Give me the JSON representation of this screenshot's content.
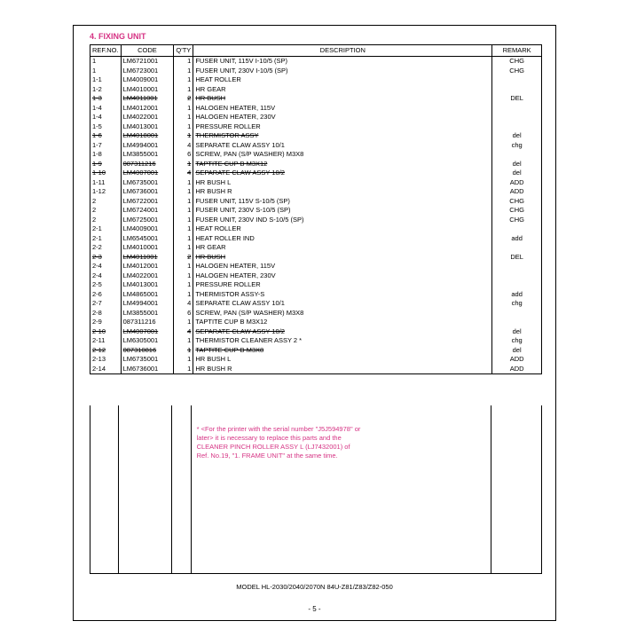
{
  "section_title": "4. FIXING UNIT",
  "headers": {
    "ref": "REF.NO.",
    "code": "CODE",
    "qty": "Q'TY",
    "desc": "DESCRIPTION",
    "remark": "REMARK"
  },
  "rows": [
    {
      "ref": "1",
      "code": "LM6721001",
      "qty": "1",
      "desc": "FUSER UNIT, 115V I-10/5 (SP)",
      "remark": "CHG",
      "s": false
    },
    {
      "ref": "1",
      "code": "LM6723001",
      "qty": "1",
      "desc": "FUSER UNIT, 230V I-10/5 (SP)",
      "remark": "CHG",
      "s": false
    },
    {
      "ref": "1-1",
      "code": "LM4009001",
      "qty": "1",
      "desc": "HEAT ROLLER",
      "remark": "",
      "s": false
    },
    {
      "ref": "1-2",
      "code": "LM4010001",
      "qty": "1",
      "desc": "HR GEAR",
      "remark": "",
      "s": false
    },
    {
      "ref": "1-3",
      "code": "LM4011001",
      "qty": "2",
      "desc": "HR BUSH",
      "remark": "DEL",
      "s": true
    },
    {
      "ref": "1-4",
      "code": "LM4012001",
      "qty": "1",
      "desc": "HALOGEN HEATER, 115V",
      "remark": "",
      "s": false
    },
    {
      "ref": "1-4",
      "code": "LM4022001",
      "qty": "1",
      "desc": "HALOGEN HEATER, 230V",
      "remark": "",
      "s": false
    },
    {
      "ref": "1-5",
      "code": "LM4013001",
      "qty": "1",
      "desc": "PRESSURE ROLLER",
      "remark": "",
      "s": false
    },
    {
      "ref": "1-6",
      "code": "LM4018001",
      "qty": "1",
      "desc": "THERMISTOR ASSY",
      "remark": "del",
      "s": true
    },
    {
      "ref": "1-7",
      "code": "LM4994001",
      "qty": "4",
      "desc": "SEPARATE CLAW ASSY 10/1",
      "remark": "chg",
      "s": false
    },
    {
      "ref": "1-8",
      "code": "LM3855001",
      "qty": "6",
      "desc": "SCREW, PAN (S/P WASHER) M3X8",
      "remark": "",
      "s": false
    },
    {
      "ref": "1-9",
      "code": "087311216",
      "qty": "1",
      "desc": "TAPTITE CUP B M3X12",
      "remark": "del",
      "s": true
    },
    {
      "ref": "1-10",
      "code": "LM4007001",
      "qty": "4",
      "desc": "SEPARATE CLAW ASSY 10/2",
      "remark": "del",
      "s": true
    },
    {
      "ref": "1-11",
      "code": "LM6735001",
      "qty": "1",
      "desc": "HR BUSH L",
      "remark": "ADD",
      "s": false
    },
    {
      "ref": "1-12",
      "code": "LM6736001",
      "qty": "1",
      "desc": "HR BUSH R",
      "remark": "ADD",
      "s": false
    },
    {
      "ref": "2",
      "code": "LM6722001",
      "qty": "1",
      "desc": "FUSER UNIT, 115V S-10/5 (SP)",
      "remark": "CHG",
      "s": false
    },
    {
      "ref": "2",
      "code": "LM6724001",
      "qty": "1",
      "desc": "FUSER UNIT, 230V S-10/5 (SP)",
      "remark": "CHG",
      "s": false
    },
    {
      "ref": "2",
      "code": "LM6725001",
      "qty": "1",
      "desc": "FUSER UNIT, 230V IND S-10/5 (SP)",
      "remark": "CHG",
      "s": false
    },
    {
      "ref": "2-1",
      "code": "LM4009001",
      "qty": "1",
      "desc": "HEAT ROLLER",
      "remark": "",
      "s": false
    },
    {
      "ref": "2-1",
      "code": "LM6545001",
      "qty": "1",
      "desc": "HEAT ROLLER IND",
      "remark": "add",
      "s": false
    },
    {
      "ref": "2-2",
      "code": "LM4010001",
      "qty": "1",
      "desc": "HR GEAR",
      "remark": "",
      "s": false
    },
    {
      "ref": "2-3",
      "code": "LM4011001",
      "qty": "2",
      "desc": "HR BUSH",
      "remark": "DEL",
      "s": true
    },
    {
      "ref": "2-4",
      "code": "LM4012001",
      "qty": "1",
      "desc": "HALOGEN HEATER, 115V",
      "remark": "",
      "s": false
    },
    {
      "ref": "2-4",
      "code": "LM4022001",
      "qty": "1",
      "desc": "HALOGEN HEATER, 230V",
      "remark": "",
      "s": false
    },
    {
      "ref": "2-5",
      "code": "LM4013001",
      "qty": "1",
      "desc": "PRESSURE ROLLER",
      "remark": "",
      "s": false
    },
    {
      "ref": "2-6",
      "code": "LM4865001",
      "qty": "1",
      "desc": "THERMISTOR ASSY-S",
      "remark": "add",
      "s": false
    },
    {
      "ref": "2-7",
      "code": "LM4994001",
      "qty": "4",
      "desc": "SEPARATE CLAW ASSY 10/1",
      "remark": "chg",
      "s": false
    },
    {
      "ref": "2-8",
      "code": "LM3855001",
      "qty": "6",
      "desc": "SCREW, PAN (S/P WASHER) M3X8",
      "remark": "",
      "s": false
    },
    {
      "ref": "2-9",
      "code": "087311216",
      "qty": "1",
      "desc": "TAPTITE CUP B M3X12",
      "remark": "",
      "s": false
    },
    {
      "ref": "2-10",
      "code": "LM4007001",
      "qty": "4",
      "desc": "SEPARATE CLAW ASSY 10/2",
      "remark": "del",
      "s": true
    },
    {
      "ref": "2-11",
      "code": "LM6305001",
      "qty": "1",
      "desc": "THERMISTOR CLEANER ASSY 2 *",
      "remark": "chg",
      "s": false
    },
    {
      "ref": "2-12",
      "code": "087310816",
      "qty": "1",
      "desc": "TAPTITE CUP B M3X8",
      "remark": "del",
      "s": true
    },
    {
      "ref": "2-13",
      "code": "LM6735001",
      "qty": "1",
      "desc": "HR BUSH L",
      "remark": "ADD",
      "s": false
    },
    {
      "ref": "2-14",
      "code": "LM6736001",
      "qty": "1",
      "desc": "HR BUSH R",
      "remark": "ADD",
      "s": false
    }
  ],
  "note": {
    "line1": "* <For the printer with the serial number \"J5J594978\" or",
    "line2": "later>  it is necessary to replace this parts and the",
    "line3": "CLEANER PINCH ROLLER ASSY L (LJ7432001) of",
    "line4": "Ref. No.19, \"1. FRAME UNIT\" at the same time."
  },
  "model_footer": "MODEL HL-2030/2040/2070N  84U-Z81/Z83/Z82-050",
  "page_num": "- 5 -",
  "colors": {
    "accent": "#d63384",
    "text": "#000000",
    "border": "#000000",
    "background": "#ffffff"
  }
}
